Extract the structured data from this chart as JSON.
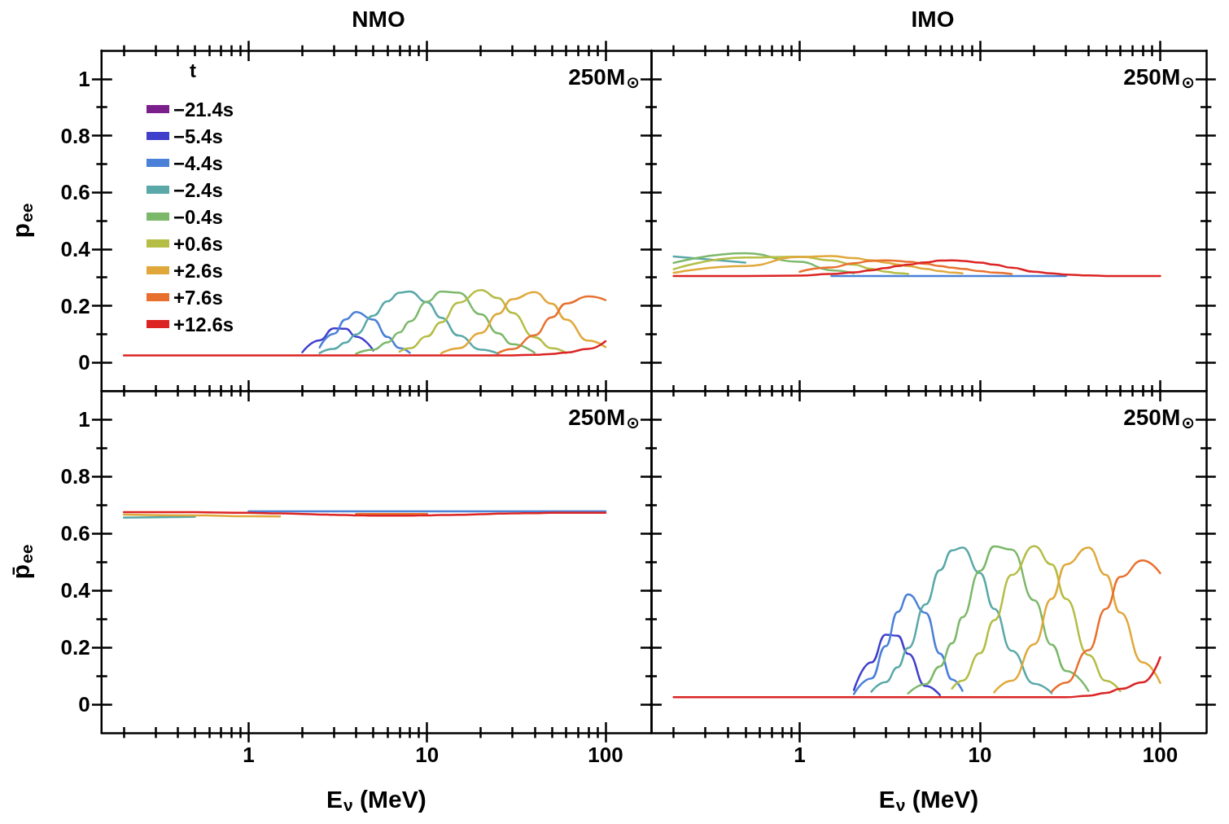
{
  "chart_data": [
    {
      "type": "line",
      "title": "NMO",
      "ylabel": "p$_{ee}$",
      "annotations": [
        "250M$_{⊙}$"
      ],
      "legend": "top left",
      "legend_title": "t",
      "tick_labels": "y",
      "log": "x",
      "marker": "none",
      "grid": false,
      "xlim": [
        0.15,
        180
      ],
      "ylim": [
        -0.1,
        1.1
      ],
      "xticks": [
        1,
        10,
        100
      ],
      "yticks": [
        0,
        {
          "value": 0.1,
          "label": null
        },
        0.2,
        {
          "value": 0.3,
          "label": null
        },
        0.4,
        {
          "value": 0.5,
          "label": null
        },
        0.6,
        {
          "value": 0.7,
          "label": null
        },
        0.8,
        {
          "value": 0.9,
          "label": null
        },
        1
      ],
      "x": [
        0.2,
        0.5,
        1,
        1.5,
        2,
        2.5,
        3,
        3.5,
        4,
        5,
        6,
        7,
        8,
        10,
        12,
        15,
        20,
        25,
        30,
        40,
        50,
        60,
        80,
        100
      ],
      "series": [
        {
          "name": "−21.4s",
          "color": "#7b1f8c",
          "values": [
            null,
            null,
            null,
            null,
            null,
            null,
            null,
            null,
            null,
            null,
            null,
            null,
            null,
            null,
            null,
            null,
            null,
            null,
            null,
            null,
            null,
            null,
            null,
            null
          ]
        },
        {
          "name": "−5.4s",
          "color": "#3f3fcc",
          "values": [
            null,
            null,
            null,
            null,
            0.036,
            0.078,
            0.12,
            0.119,
            0.091,
            0.042,
            null,
            null,
            null,
            null,
            null,
            null,
            null,
            null,
            null,
            null,
            null,
            null,
            null,
            null
          ]
        },
        {
          "name": "−4.4s",
          "color": "#4a80d8",
          "values": [
            null,
            null,
            null,
            null,
            null,
            0.053,
            0.101,
            0.152,
            0.178,
            0.151,
            0.09,
            0.051,
            0.034,
            null,
            null,
            null,
            null,
            null,
            null,
            null,
            null,
            null,
            null,
            null
          ]
        },
        {
          "name": "−2.4s",
          "color": "#5aa8a8",
          "values": [
            null,
            null,
            null,
            null,
            null,
            0.033,
            0.048,
            0.07,
            0.099,
            0.165,
            0.216,
            0.246,
            0.25,
            0.212,
            0.158,
            0.095,
            0.045,
            0.031,
            null,
            null,
            null,
            null,
            null,
            null
          ]
        },
        {
          "name": "−0.4s",
          "color": "#7cb86a",
          "values": [
            null,
            null,
            null,
            null,
            null,
            null,
            null,
            null,
            0.031,
            0.045,
            0.071,
            0.106,
            0.145,
            0.214,
            0.25,
            0.246,
            0.17,
            0.103,
            0.064,
            0.034,
            null,
            null,
            null,
            null
          ]
        },
        {
          "name": "+0.6s",
          "color": "#b5bd45",
          "values": [
            null,
            null,
            null,
            null,
            null,
            null,
            null,
            null,
            null,
            null,
            null,
            0.038,
            0.05,
            0.092,
            0.142,
            0.211,
            0.255,
            0.227,
            0.175,
            0.089,
            0.05,
            0.034,
            null,
            null
          ]
        },
        {
          "name": "+2.6s",
          "color": "#e0a83a",
          "values": [
            null,
            null,
            null,
            null,
            null,
            null,
            null,
            null,
            null,
            null,
            null,
            null,
            null,
            null,
            0.032,
            0.05,
            0.104,
            0.171,
            0.223,
            0.248,
            0.207,
            0.151,
            0.077,
            0.054
          ]
        },
        {
          "name": "+7.6s",
          "color": "#e8702e",
          "values": [
            null,
            null,
            null,
            null,
            null,
            null,
            null,
            null,
            null,
            null,
            null,
            null,
            null,
            null,
            null,
            null,
            null,
            0.033,
            0.047,
            0.096,
            0.159,
            0.208,
            0.233,
            0.22
          ]
        },
        {
          "name": "+12.6s",
          "color": "#dc2424",
          "values": [
            0.025,
            0.025,
            0.025,
            0.025,
            0.025,
            0.025,
            0.025,
            0.025,
            0.025,
            0.025,
            0.025,
            0.025,
            0.025,
            0.025,
            0.025,
            0.025,
            0.025,
            0.025,
            0.025,
            0.027,
            0.03,
            0.035,
            0.048,
            0.075
          ]
        }
      ]
    },
    {
      "type": "line",
      "title": "IMO",
      "annotations": [
        "250M$_{⊙}$"
      ],
      "legend": false,
      "tick_labels": false,
      "log": "x",
      "marker": "none",
      "grid": false,
      "xlim": [
        0.15,
        180
      ],
      "ylim": [
        -0.1,
        1.1
      ],
      "xticks": [
        1,
        10,
        100
      ],
      "yticks": [
        0,
        {
          "value": 0.1,
          "label": null
        },
        0.2,
        {
          "value": 0.3,
          "label": null
        },
        0.4,
        {
          "value": 0.5,
          "label": null
        },
        0.6,
        {
          "value": 0.7,
          "label": null
        },
        0.8,
        {
          "value": 0.9,
          "label": null
        },
        1
      ],
      "x": [
        0.2,
        0.5,
        1,
        1.5,
        2,
        2.5,
        3,
        3.5,
        4,
        5,
        6,
        7,
        8,
        10,
        12,
        15,
        20,
        25,
        30,
        40,
        50,
        60,
        80,
        100
      ],
      "series": [
        {
          "color": "#4a80d8",
          "values": [
            null,
            null,
            null,
            0.305,
            0.305,
            0.305,
            0.305,
            0.305,
            0.305,
            0.305,
            0.305,
            0.305,
            0.305,
            0.305,
            0.305,
            0.305,
            0.305,
            0.305,
            0.305,
            null,
            null,
            null,
            null,
            null
          ]
        },
        {
          "color": "#5aa8a8",
          "values": [
            0.374,
            0.352,
            null,
            null,
            null,
            null,
            null,
            null,
            null,
            null,
            null,
            null,
            null,
            null,
            null,
            null,
            null,
            null,
            null,
            null,
            null,
            null,
            null,
            null
          ]
        },
        {
          "color": "#7cb86a",
          "values": [
            0.351,
            0.385,
            0.355,
            0.325,
            0.315,
            null,
            null,
            null,
            null,
            null,
            null,
            null,
            null,
            null,
            null,
            null,
            null,
            null,
            null,
            null,
            null,
            null,
            null,
            null
          ]
        },
        {
          "color": "#b5bd45",
          "values": [
            0.329,
            0.37,
            0.373,
            0.36,
            0.345,
            0.33,
            0.32,
            0.315,
            0.312,
            null,
            null,
            null,
            null,
            null,
            null,
            null,
            null,
            null,
            null,
            null,
            null,
            null,
            null,
            null
          ]
        },
        {
          "color": "#e0a83a",
          "values": [
            0.316,
            0.34,
            0.372,
            0.375,
            0.368,
            0.36,
            0.352,
            0.345,
            0.34,
            0.33,
            0.322,
            0.317,
            0.314,
            null,
            null,
            null,
            null,
            null,
            null,
            null,
            null,
            null,
            null,
            null
          ]
        },
        {
          "color": "#e8702e",
          "values": [
            null,
            null,
            0.32,
            0.335,
            0.35,
            0.358,
            0.36,
            0.358,
            0.355,
            0.348,
            0.34,
            0.334,
            0.33,
            0.322,
            0.317,
            0.312,
            null,
            null,
            null,
            null,
            null,
            null,
            null,
            null
          ]
        },
        {
          "color": "#dc2424",
          "values": [
            0.305,
            0.305,
            0.306,
            0.312,
            0.318,
            0.325,
            0.333,
            0.34,
            0.345,
            0.353,
            0.359,
            0.36,
            0.358,
            0.352,
            0.345,
            0.334,
            0.32,
            0.314,
            0.31,
            0.307,
            0.305,
            0.305,
            0.305,
            0.305
          ]
        }
      ]
    },
    {
      "type": "line",
      "xlabel": "E$_{ν}$ (MeV)",
      "ylabel": "p̄$_{ee}$",
      "annotations": [
        "250M$_{⊙}$"
      ],
      "legend": false,
      "log": "x",
      "marker": "none",
      "grid": false,
      "xlim": [
        0.15,
        180
      ],
      "ylim": [
        -0.1,
        1.1
      ],
      "xticks": [
        1,
        10,
        100
      ],
      "yticks": [
        0,
        {
          "value": 0.1,
          "label": null
        },
        0.2,
        {
          "value": 0.3,
          "label": null
        },
        0.4,
        {
          "value": 0.5,
          "label": null
        },
        0.6,
        {
          "value": 0.7,
          "label": null
        },
        0.8,
        {
          "value": 0.9,
          "label": null
        },
        1
      ],
      "x": [
        0.2,
        0.5,
        1,
        1.5,
        2,
        2.5,
        3,
        3.5,
        4,
        5,
        6,
        7,
        8,
        10,
        12,
        15,
        20,
        25,
        30,
        40,
        50,
        60,
        80,
        100
      ],
      "series": [
        {
          "color": "#4a80d8",
          "values": [
            null,
            null,
            0.677,
            0.677,
            0.677,
            0.677,
            0.677,
            0.677,
            0.677,
            0.677,
            0.677,
            0.677,
            0.677,
            0.677,
            0.677,
            0.677,
            0.677,
            0.677,
            0.677,
            0.677,
            0.677,
            0.677,
            0.677,
            0.677
          ]
        },
        {
          "color": "#5aa8a8",
          "values": [
            0.655,
            0.658,
            null,
            null,
            null,
            null,
            null,
            null,
            null,
            null,
            null,
            null,
            null,
            null,
            null,
            null,
            null,
            null,
            null,
            null,
            null,
            null,
            null,
            null
          ]
        },
        {
          "color": "#e0a83a",
          "values": [
            0.666,
            0.663,
            0.66,
            0.659,
            null,
            null,
            null,
            null,
            null,
            null,
            null,
            null,
            null,
            null,
            null,
            null,
            null,
            null,
            null,
            null,
            null,
            null,
            null,
            null
          ]
        },
        {
          "color": "#e8702e",
          "values": [
            null,
            null,
            null,
            null,
            null,
            null,
            null,
            null,
            0.668,
            0.668,
            0.668,
            0.668,
            0.668,
            0.668,
            null,
            null,
            null,
            null,
            null,
            null,
            null,
            null,
            null,
            null
          ]
        },
        {
          "color": "#dc2424",
          "values": [
            0.674,
            0.674,
            0.672,
            0.67,
            0.668,
            0.666,
            0.665,
            0.664,
            0.663,
            0.662,
            0.662,
            0.662,
            0.662,
            0.663,
            0.664,
            0.665,
            0.667,
            0.669,
            0.67,
            0.671,
            0.672,
            0.672,
            0.672,
            0.672
          ]
        }
      ]
    },
    {
      "type": "line",
      "xlabel": "E$_{ν}$ (MeV)",
      "annotations": [
        "250M$_{⊙}$"
      ],
      "legend": false,
      "tick_labels": "x",
      "log": "x",
      "marker": "none",
      "grid": false,
      "xlim": [
        0.15,
        180
      ],
      "ylim": [
        -0.1,
        1.1
      ],
      "xticks": [
        1,
        10,
        100
      ],
      "yticks": [
        0,
        {
          "value": 0.1,
          "label": null
        },
        0.2,
        {
          "value": 0.3,
          "label": null
        },
        0.4,
        {
          "value": 0.5,
          "label": null
        },
        0.6,
        {
          "value": 0.7,
          "label": null
        },
        0.8,
        {
          "value": 0.9,
          "label": null
        },
        1
      ],
      "x": [
        0.2,
        0.5,
        1,
        1.5,
        2,
        2.5,
        3,
        3.5,
        4,
        5,
        6,
        7,
        8,
        10,
        12,
        15,
        20,
        25,
        30,
        40,
        50,
        60,
        80,
        100
      ],
      "series": [
        {
          "color": "#3f3fcc",
          "values": [
            null,
            null,
            null,
            null,
            0.05,
            0.147,
            0.244,
            0.241,
            0.177,
            0.064,
            0.032,
            null,
            null,
            null,
            null,
            null,
            null,
            null,
            null,
            null,
            null,
            null,
            null,
            null
          ]
        },
        {
          "color": "#4a80d8",
          "values": [
            null,
            null,
            null,
            null,
            0.036,
            0.091,
            0.204,
            0.324,
            0.386,
            0.321,
            0.178,
            0.087,
            0.047,
            null,
            null,
            null,
            null,
            null,
            null,
            null,
            null,
            null,
            null,
            null
          ]
        },
        {
          "color": "#5aa8a8",
          "values": [
            null,
            null,
            null,
            null,
            null,
            0.044,
            0.078,
            0.13,
            0.198,
            0.351,
            0.471,
            0.54,
            0.55,
            0.461,
            0.335,
            0.188,
            0.072,
            0.039,
            null,
            null,
            null,
            null,
            null,
            null
          ]
        },
        {
          "color": "#7cb86a",
          "values": [
            null,
            null,
            null,
            null,
            null,
            null,
            null,
            null,
            0.038,
            0.071,
            0.133,
            0.214,
            0.306,
            0.468,
            0.554,
            0.543,
            0.365,
            0.209,
            0.117,
            0.047,
            null,
            null,
            null,
            null
          ]
        },
        {
          "color": "#b5bd45",
          "values": [
            null,
            null,
            null,
            null,
            null,
            null,
            null,
            null,
            null,
            null,
            null,
            0.055,
            0.083,
            0.179,
            0.295,
            0.454,
            0.555,
            0.491,
            0.37,
            0.173,
            0.083,
            0.046,
            null,
            null
          ]
        },
        {
          "color": "#e0a83a",
          "values": [
            null,
            null,
            null,
            null,
            null,
            null,
            null,
            null,
            null,
            null,
            null,
            null,
            null,
            null,
            0.042,
            0.083,
            0.211,
            0.37,
            0.491,
            0.55,
            0.454,
            0.322,
            0.147,
            0.075
          ]
        },
        {
          "color": "#e8702e",
          "values": [
            null,
            null,
            null,
            null,
            null,
            null,
            null,
            null,
            null,
            null,
            null,
            null,
            null,
            null,
            null,
            null,
            null,
            0.044,
            0.076,
            0.19,
            0.335,
            0.447,
            0.505,
            0.46
          ]
        },
        {
          "color": "#dc2424",
          "values": [
            0.025,
            0.025,
            0.025,
            0.025,
            0.025,
            0.025,
            0.025,
            0.025,
            0.025,
            0.025,
            0.025,
            0.025,
            0.025,
            0.025,
            0.025,
            0.025,
            0.025,
            0.025,
            0.025,
            0.03,
            0.04,
            0.054,
            0.077,
            0.165
          ]
        }
      ]
    }
  ]
}
